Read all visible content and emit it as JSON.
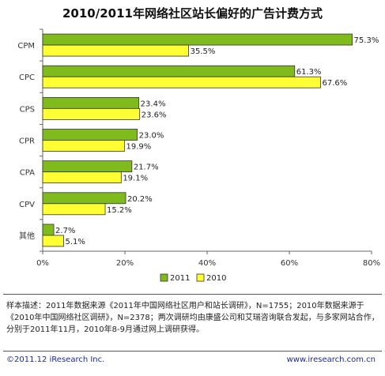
{
  "chart_data": {
    "type": "bar",
    "orientation": "horizontal",
    "title": "2010/2011年网络社区站长偏好的广告计费方式",
    "categories": [
      "CPM",
      "CPC",
      "CPS",
      "CPR",
      "CPA",
      "CPV",
      "其他"
    ],
    "series": [
      {
        "name": "2011",
        "color": "#7fbb1c",
        "values": [
          75.3,
          61.3,
          23.4,
          23.0,
          21.7,
          20.2,
          2.7
        ],
        "labels": [
          "75.3%",
          "61.3%",
          "23.4%",
          "23.0%",
          "21.7%",
          "20.2%",
          "2.7%"
        ]
      },
      {
        "name": "2010",
        "color": "#ffff33",
        "values": [
          35.5,
          67.6,
          23.6,
          19.9,
          19.1,
          15.2,
          5.1
        ],
        "labels": [
          "35.5%",
          "67.6%",
          "23.6%",
          "19.9%",
          "19.1%",
          "15.2%",
          "5.1%"
        ]
      }
    ],
    "xlim": [
      0,
      80
    ],
    "xticks": [
      "0%",
      "20%",
      "40%",
      "60%",
      "80%"
    ],
    "grid": false,
    "legend_position": "bottom"
  },
  "note": "样本描述：2011年数据来源《2011年中国网络社区用户和站长调研》，N=1755；2010年数据来源于《2010年中国网络社区调研》，N=2378；两次调研均由康盛公司和艾瑞咨询联合发起，与多家网站合作，分别于2011年11月，2010年8-9月通过网上调研获得。",
  "footer": {
    "copyright": "©2011.12 iResearch Inc.",
    "website": "www.iresearch.com.cn"
  }
}
